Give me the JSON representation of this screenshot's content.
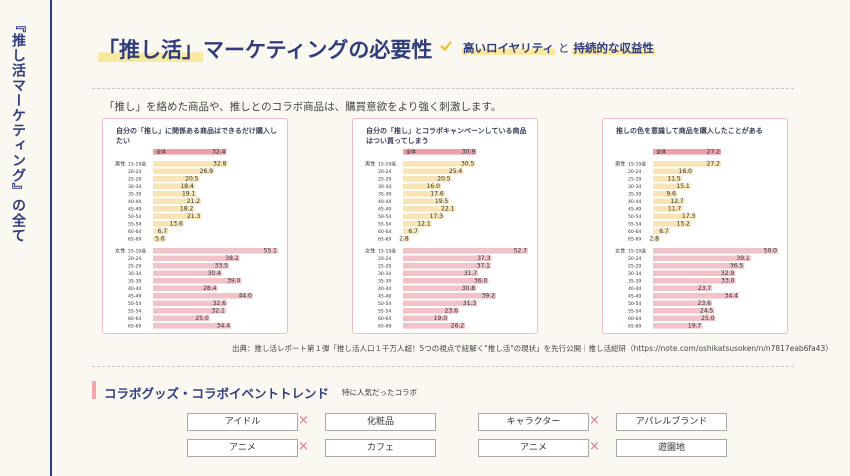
{
  "sidebar": {
    "vertical_title": "『推し活マーケティング』の全て"
  },
  "header": {
    "title_prefix": "「推し活」",
    "title_suffix": "マーケティングの必要性",
    "tag_a": "高いロイヤリティ",
    "tag_and": "と",
    "tag_b": "持続的な収益性"
  },
  "intro": "「推し」を絡めた商品や、推しとのコラボ商品は、購買意欲をより強く刺激します。",
  "chart_data": [
    {
      "type": "bar",
      "title": "自分の「推し」に関係ある商品はできるだけ購入したい",
      "total_label": "全体",
      "total": 32.4,
      "male_label": "男性",
      "female_label": "女性",
      "categories": [
        "15-19歳",
        "20-24",
        "25-29",
        "30-34",
        "35-39",
        "40-44",
        "45-49",
        "50-54",
        "55-54",
        "60-64",
        "65-69"
      ],
      "series": [
        {
          "name": "男性",
          "values": [
            32.8,
            26.9,
            20.5,
            18.4,
            19.1,
            21.2,
            18.2,
            21.3,
            13.6,
            6.7,
            5.6
          ]
        },
        {
          "name": "女性",
          "values": [
            55.1,
            38.2,
            33.5,
            30.4,
            39.0,
            28.4,
            44.0,
            32.6,
            32.1,
            25.0,
            34.4
          ]
        }
      ],
      "female_categories": [
        "15-19歳",
        "20-24",
        "25-29",
        "30-34",
        "35-39",
        "40-44",
        "45-49",
        "50-54",
        "55-54",
        "60-64",
        "65-69"
      ],
      "xlim": [
        0,
        55.1
      ]
    },
    {
      "type": "bar",
      "title": "自分の「推し」とコラボキャンペーンしている商品はつい買ってしまう",
      "total_label": "全体",
      "total": 30.9,
      "male_label": "男性",
      "female_label": "女性",
      "categories": [
        "15-19歳",
        "20-24",
        "25-29",
        "30-34",
        "35-39",
        "40-44",
        "45-49",
        "50-54",
        "55-54",
        "60-64",
        "65-69"
      ],
      "series": [
        {
          "name": "男性",
          "values": [
            30.5,
            25.4,
            20.5,
            16.0,
            17.6,
            19.5,
            22.1,
            17.3,
            12.1,
            6.7,
            2.8
          ]
        },
        {
          "name": "女性",
          "values": [
            52.7,
            37.3,
            37.1,
            31.7,
            36.0,
            30.8,
            39.2,
            31.3,
            23.6,
            19.0,
            26.2
          ]
        }
      ],
      "female_categories": [
        "15-19歳",
        "20-24",
        "25-29",
        "30-34",
        "35-39",
        "40-44",
        "45-49",
        "50-54",
        "55-54",
        "60-64",
        "65-69"
      ],
      "xlim": [
        0,
        52.7
      ]
    },
    {
      "type": "bar",
      "title": "推しの色を意識して商品を購入したことがある",
      "total_label": "全体",
      "total": 27.2,
      "male_label": "男性",
      "female_label": "女性",
      "categories": [
        "15-19歳",
        "20-24",
        "25-29",
        "30-34",
        "35-39",
        "40-44",
        "45-49",
        "50-54",
        "55-54",
        "60-64",
        "65-69"
      ],
      "series": [
        {
          "name": "男性",
          "values": [
            27.2,
            16.0,
            11.5,
            15.1,
            9.6,
            12.7,
            11.7,
            17.3,
            15.2,
            6.7,
            2.8
          ]
        },
        {
          "name": "女性",
          "values": [
            50.0,
            39.1,
            36.5,
            32.9,
            33.0,
            23.7,
            34.4,
            23.6,
            24.5,
            25.0,
            19.7
          ]
        }
      ],
      "female_categories": [
        "15-19歳",
        "20-24",
        "25-29",
        "30-34",
        "35-39",
        "40-44",
        "45-49",
        "50-54",
        "55-54",
        "60-64",
        "65-69"
      ],
      "xlim": [
        0,
        50.0
      ]
    }
  ],
  "source": "出典：推し活レポート第１弾「推し活人口１千万人超！5つの視点で紐解く\"推し活\"の現状」を先行公開｜推し活総研（https://note.com/oshikatsusoken/n/n7817eab6fa43）",
  "collab": {
    "title": "コラボグッズ・コラボイベントトレンド",
    "note": "特に人気だったコラボ",
    "cross": "×",
    "pairs": [
      [
        "アイドル",
        "化粧品"
      ],
      [
        "キャラクター",
        "アパレルブランド"
      ],
      [
        "アニメ",
        "カフェ"
      ],
      [
        "アニメ",
        "遊園地"
      ]
    ]
  },
  "colors": {
    "male": "#f8e4b4",
    "female": "#f1c3c8",
    "total": "#ee9fa8",
    "navy": "#2f3c7e",
    "border": "#f2bcc3"
  }
}
